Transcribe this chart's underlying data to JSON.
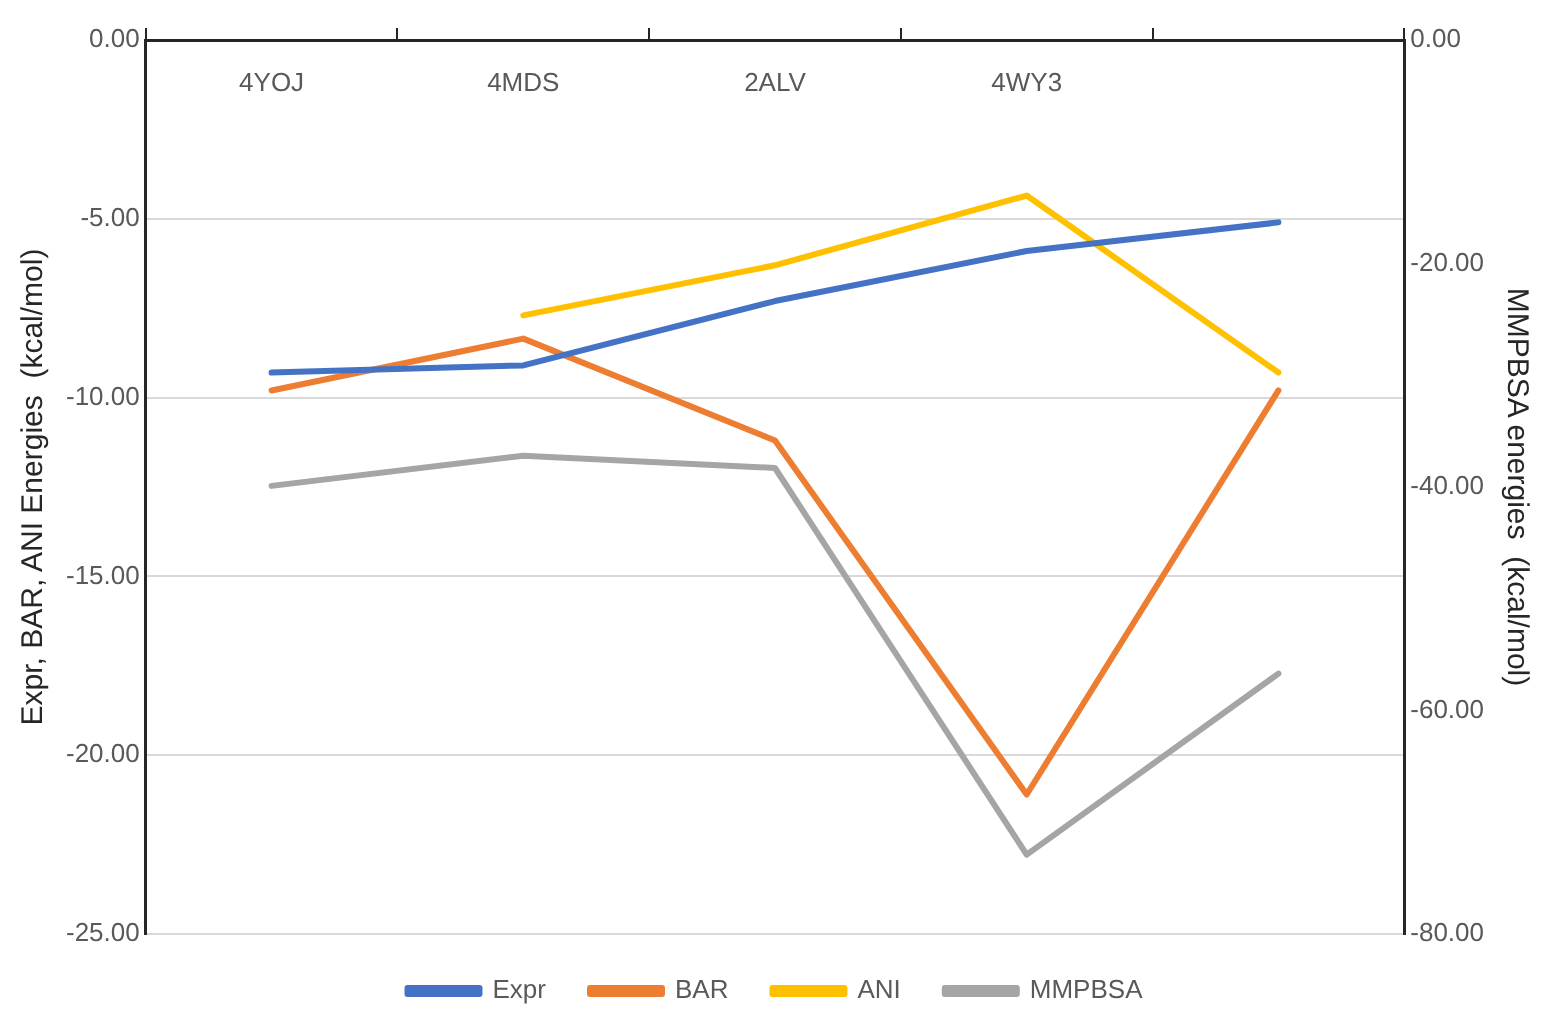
{
  "chart_data": {
    "type": "line",
    "ylabel": "Expr, BAR, ANI Energies  (kcal/mol)",
    "y2label": "MMPBSA energies  (kcal/mol)",
    "categories": [
      "4YOJ",
      "4MDS",
      "2ALV",
      "4WY3",
      null
    ],
    "series": [
      {
        "name": "Expr",
        "color": "#4472c4",
        "values": [
          -9.3,
          -9.1,
          -7.3,
          -5.9,
          -5.1
        ]
      },
      {
        "name": "BAR",
        "color": "#ed7d31",
        "values": [
          -9.8,
          -8.35,
          -11.2,
          -21.1,
          -9.8
        ]
      },
      {
        "name": "ANI",
        "color": "#ffc000",
        "values": [
          null,
          -7.7,
          -6.3,
          -4.35,
          -9.3
        ]
      },
      {
        "name": "MMPBSA",
        "color": "#a5a5a5",
        "axis": "y2",
        "values": [
          -39.9,
          -37.2,
          -38.3,
          -72.9,
          -56.7
        ]
      }
    ],
    "ylim": [
      -25,
      0
    ],
    "yticks": [
      {
        "value": -25,
        "label": "-25.00"
      },
      {
        "value": -20,
        "label": "-20.00"
      },
      {
        "value": -15,
        "label": "-15.00"
      },
      {
        "value": -10,
        "label": "-10.00"
      },
      {
        "value": -5,
        "label": "-5.00"
      },
      {
        "value": 0,
        "label": "0.00"
      }
    ],
    "y2lim": [
      -80,
      0
    ],
    "y2ticks": [
      {
        "value": -80,
        "label": "-80.00"
      },
      {
        "value": -60,
        "label": "-60.00"
      },
      {
        "value": -40,
        "label": "-40.00"
      },
      {
        "value": -20,
        "label": "-20.00"
      },
      {
        "value": 0,
        "label": "0.00"
      }
    ],
    "grid": "y",
    "legend": "bottom",
    "marker": "none",
    "line_style": "solid"
  }
}
